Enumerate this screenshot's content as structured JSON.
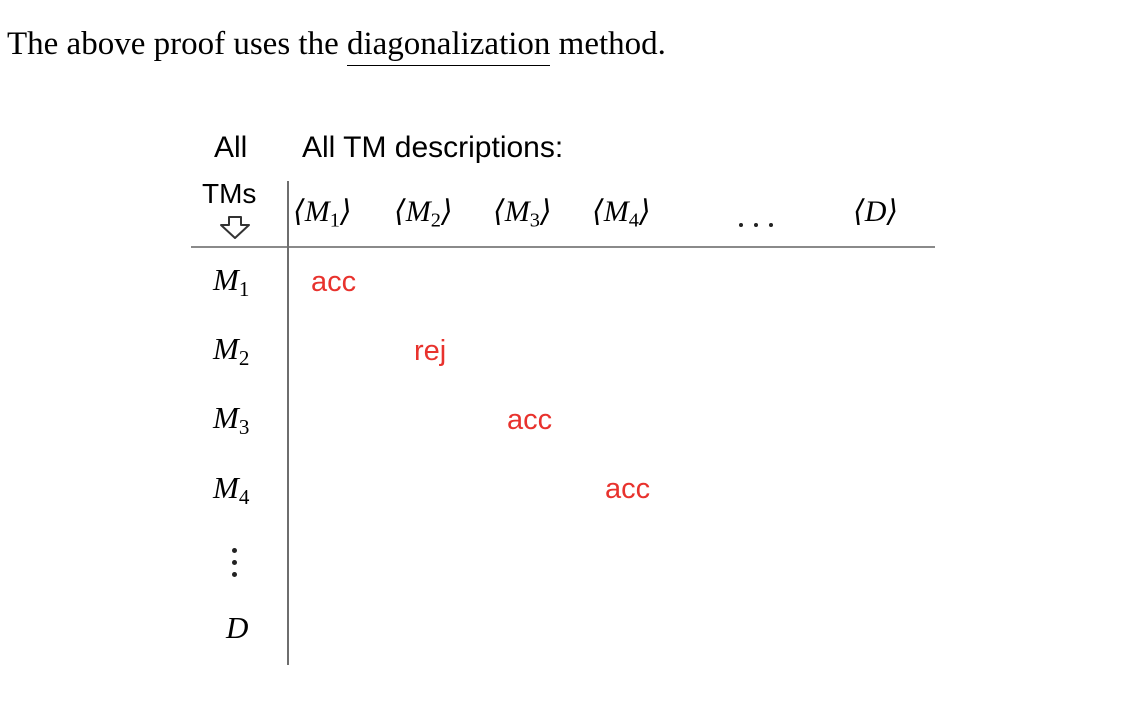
{
  "text": {
    "before": "The above proof uses the ",
    "term": "diagonalization",
    "after": " method."
  },
  "table": {
    "corner": {
      "line1": "All",
      "line2": "TMs"
    },
    "header_caption": "All TM descriptions:",
    "columns": [
      {
        "name": "M",
        "sub": "1"
      },
      {
        "name": "M",
        "sub": "2"
      },
      {
        "name": "M",
        "sub": "3"
      },
      {
        "name": "M",
        "sub": "4"
      },
      {
        "name": "…",
        "sub": ""
      },
      {
        "name": "D",
        "sub": ""
      }
    ],
    "rows": [
      {
        "name": "M",
        "sub": "1",
        "cell": "acc"
      },
      {
        "name": "M",
        "sub": "2",
        "cell": "rej"
      },
      {
        "name": "M",
        "sub": "3",
        "cell": "acc"
      },
      {
        "name": "M",
        "sub": "4",
        "cell": "acc"
      },
      {
        "name": "⋮",
        "sub": "",
        "cell": ""
      },
      {
        "name": "D",
        "sub": "",
        "cell": ""
      }
    ]
  },
  "icons": {
    "down_arrow": "outline-down-arrow-icon"
  }
}
